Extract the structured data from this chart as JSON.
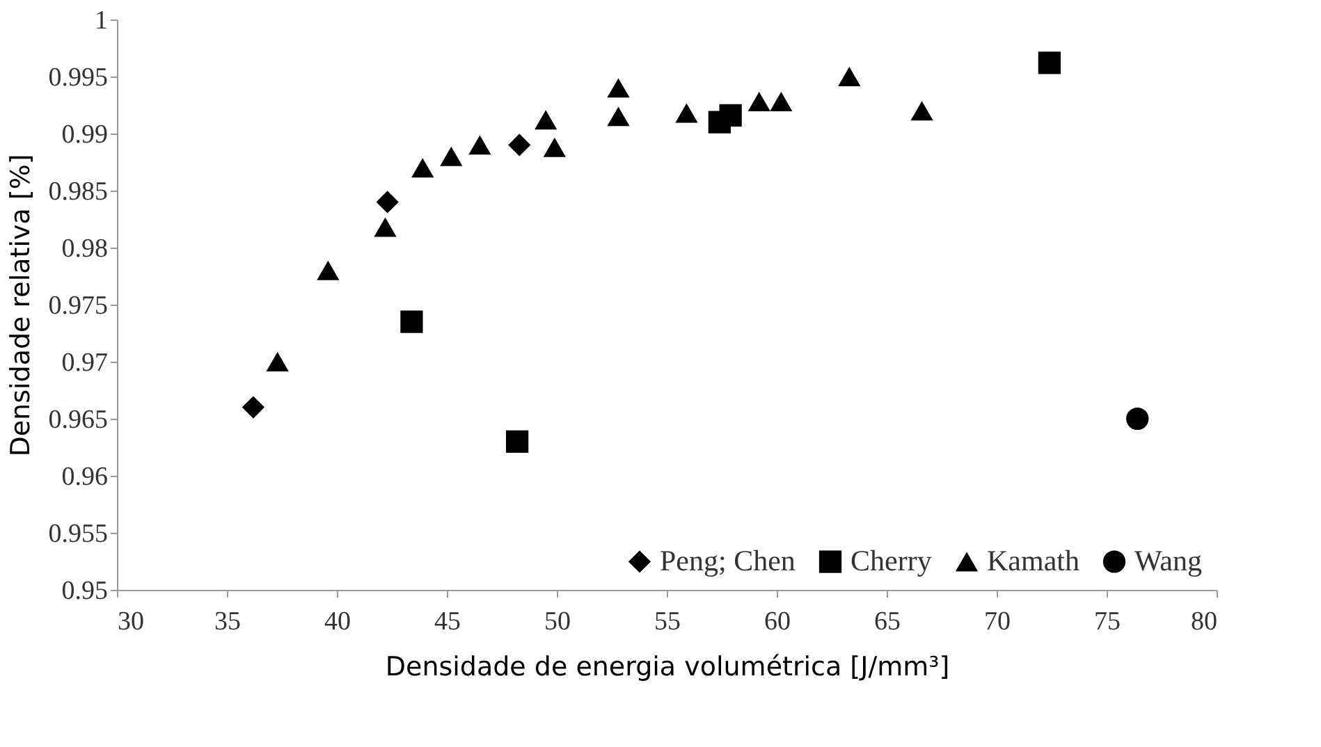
{
  "chart_data": {
    "type": "scatter",
    "xlabel": "Densidade de energia volumétrica [J/mm³]",
    "ylabel": "Densidade relativa [%]",
    "xlim": [
      30,
      80
    ],
    "xticks": [
      30,
      35,
      40,
      45,
      50,
      55,
      60,
      65,
      70,
      75,
      80
    ],
    "ylim": [
      0.95,
      1
    ],
    "yticks": [
      0.95,
      0.955,
      0.96,
      0.965,
      0.97,
      0.975,
      0.98,
      0.985,
      0.99,
      0.995,
      1
    ],
    "grid": false,
    "legend": "bottom right",
    "series": [
      {
        "name": "Peng; Chen",
        "color": "#000000",
        "marker": "diamond",
        "x": [
          36.2,
          42.3,
          48.3
        ],
        "values": [
          0.966,
          0.984,
          0.989
        ]
      },
      {
        "name": "Cherry",
        "color": "#000000",
        "marker": "square",
        "x": [
          43.4,
          48.2,
          57.4,
          57.9,
          72.4
        ],
        "values": [
          0.9735,
          0.963,
          0.991,
          0.9916,
          0.9962
        ]
      },
      {
        "name": "Kamath",
        "color": "#000000",
        "marker": "triangle",
        "x": [
          37.3,
          39.6,
          42.2,
          43.9,
          45.2,
          46.5,
          49.5,
          49.9,
          52.8,
          52.8,
          55.9,
          59.2,
          60.2,
          63.3,
          66.6
        ],
        "values": [
          0.97,
          0.978,
          0.9818,
          0.987,
          0.988,
          0.989,
          0.9912,
          0.9888,
          0.9915,
          0.994,
          0.9918,
          0.9928,
          0.9928,
          0.995,
          0.992
        ]
      },
      {
        "name": "Wang",
        "color": "#000000",
        "marker": "circle",
        "x": [
          76.4
        ],
        "values": [
          0.965
        ]
      }
    ]
  }
}
